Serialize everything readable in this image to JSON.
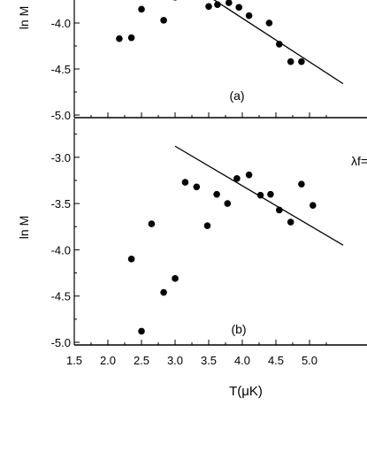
{
  "chart_data": {
    "type": "scatter",
    "xlabel": "T(μK)",
    "x_ticks": [
      "1.5",
      "2.0",
      "2.5",
      "3.0",
      "3.5",
      "4.0",
      "4.5",
      "5.0"
    ],
    "xlim": [
      1.5,
      5.5
    ],
    "panels": [
      {
        "label": "(a)",
        "ylabel": "ln M",
        "ylim": [
          -5.0,
          -3.5
        ],
        "y_ticks": [
          "-5.0",
          "-4.5",
          "-4.0"
        ],
        "points": [
          [
            2.17,
            -4.17
          ],
          [
            2.35,
            -4.16
          ],
          [
            2.5,
            -3.85
          ],
          [
            2.83,
            -3.97
          ],
          [
            3.0,
            -3.72
          ],
          [
            3.5,
            -3.82
          ],
          [
            3.63,
            -3.8
          ],
          [
            3.8,
            -3.78
          ],
          [
            3.95,
            -3.83
          ],
          [
            4.1,
            -3.92
          ],
          [
            4.4,
            -4.0
          ],
          [
            4.55,
            -4.23
          ],
          [
            4.72,
            -4.42
          ],
          [
            4.88,
            -4.42
          ]
        ],
        "fit_line": [
          [
            3.52,
            -3.72
          ],
          [
            5.5,
            -4.66
          ]
        ],
        "annotation": ""
      },
      {
        "label": "(b)",
        "ylabel": "ln M",
        "ylim": [
          -5.05,
          -2.65
        ],
        "y_ticks": [
          "-5.0",
          "-4.5",
          "-4.0",
          "-3.5",
          "-3.0"
        ],
        "points": [
          [
            2.35,
            -4.1
          ],
          [
            2.5,
            -4.88
          ],
          [
            2.65,
            -3.72
          ],
          [
            2.83,
            -4.46
          ],
          [
            3.0,
            -4.31
          ],
          [
            3.15,
            -3.27
          ],
          [
            3.32,
            -3.32
          ],
          [
            3.48,
            -3.74
          ],
          [
            3.62,
            -3.4
          ],
          [
            3.78,
            -3.5
          ],
          [
            3.92,
            -3.23
          ],
          [
            4.1,
            -3.19
          ],
          [
            4.27,
            -3.41
          ],
          [
            4.42,
            -3.4
          ],
          [
            4.55,
            -3.57
          ],
          [
            4.72,
            -3.7
          ],
          [
            4.88,
            -3.29
          ],
          [
            5.05,
            -3.52
          ]
        ],
        "fit_line": [
          [
            3.0,
            -2.88
          ],
          [
            5.5,
            -3.95
          ]
        ],
        "annotation": "λf="
      }
    ]
  }
}
